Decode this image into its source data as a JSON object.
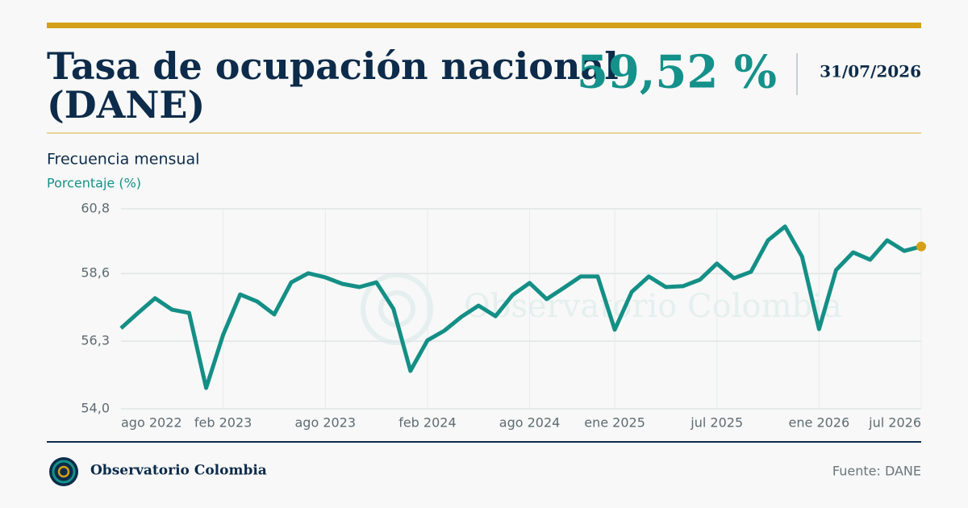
{
  "chart_data": {
    "type": "line",
    "title": "Tasa de ocupación nacional (DANE)",
    "date": "31/07/2026",
    "subtitle": "Frecuencia mensual",
    "y_label": "Porcentaje (%)",
    "watermark": "Observatorio Colombia",
    "categories": [
      "ago 2022",
      null,
      null,
      null,
      null,
      null,
      "feb 2023",
      null,
      null,
      null,
      null,
      null,
      "ago 2023",
      null,
      null,
      null,
      null,
      null,
      "feb 2024",
      null,
      null,
      null,
      null,
      null,
      "ago 2024",
      null,
      null,
      null,
      null,
      "ene 2025",
      null,
      null,
      null,
      null,
      null,
      "jul 2025",
      null,
      null,
      null,
      null,
      null,
      "ene 2026",
      null,
      null,
      null,
      null,
      null,
      "jul 2026"
    ],
    "series": [
      {
        "name": "Tasa de ocupación",
        "color": "#148f86",
        "values": [
          56.74,
          57.26,
          57.76,
          57.37,
          57.26,
          54.71,
          56.52,
          57.89,
          57.65,
          57.21,
          58.3,
          58.61,
          58.47,
          58.25,
          58.14,
          58.3,
          57.4,
          55.29,
          56.33,
          56.66,
          57.13,
          57.51,
          57.15,
          57.87,
          58.28,
          57.73,
          58.11,
          58.5,
          58.5,
          56.69,
          57.98,
          58.5,
          58.14,
          58.17,
          58.39,
          58.94,
          58.44,
          58.66,
          59.73,
          60.2,
          59.18,
          56.71,
          58.72,
          59.32,
          59.07,
          59.73,
          59.37,
          59.52
        ],
        "value_labels": [
          null,
          null,
          null,
          null,
          null,
          null,
          null,
          null,
          null,
          null,
          null,
          null,
          null,
          null,
          null,
          null,
          null,
          null,
          null,
          null,
          null,
          null,
          null,
          null,
          null,
          null,
          null,
          null,
          null,
          null,
          null,
          null,
          null,
          null,
          null,
          null,
          null,
          null,
          null,
          null,
          null,
          null,
          null,
          null,
          null,
          null,
          null,
          "59,52 %"
        ]
      }
    ],
    "last_point_color": "#d4a017",
    "ylim": [
      54.0,
      60.8
    ],
    "yticks": [
      {
        "value": 54.0,
        "label": "54,0"
      },
      {
        "value": 56.3,
        "label": "56,3"
      },
      {
        "value": 58.6,
        "label": "58,6"
      },
      {
        "value": 60.8,
        "label": "60,8"
      }
    ],
    "grid": true
  },
  "footer": {
    "brand": "Observatorio Colombia",
    "source": "Fuente: DANE"
  }
}
